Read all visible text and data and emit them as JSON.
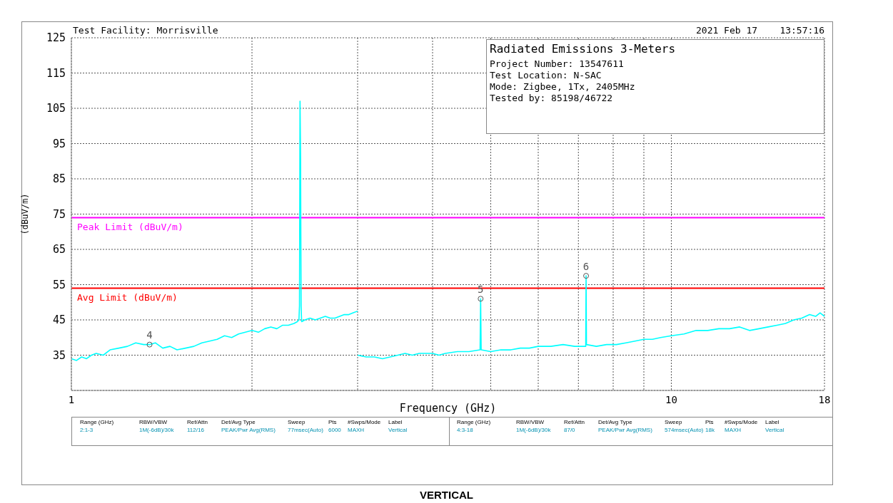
{
  "chart_data": {
    "type": "line",
    "title": "Radiated Emissions 3-Meters",
    "xlabel": "Frequency (GHz)",
    "ylabel": "(dBuV/m)",
    "log": "x",
    "grid": true,
    "legend": false,
    "marker": "none",
    "xlim": [
      1,
      18
    ],
    "xticks": [
      1,
      {
        "value": 2,
        "label": null
      },
      {
        "value": 3,
        "label": null
      },
      {
        "value": 4,
        "label": null
      },
      {
        "value": 5,
        "label": null
      },
      {
        "value": 6,
        "label": null
      },
      {
        "value": 7,
        "label": null
      },
      {
        "value": 8,
        "label": null
      },
      {
        "value": 9,
        "label": null
      },
      10,
      18
    ],
    "ylim": [
      25,
      125
    ],
    "yticks": [
      {
        "value": 25,
        "label": null
      },
      35,
      45,
      55,
      65,
      75,
      85,
      95,
      105,
      115,
      125
    ],
    "series": [
      {
        "color": "#00ffff",
        "x": [
          1.0,
          1.02,
          1.04,
          1.06,
          1.08,
          1.1,
          1.13,
          1.16,
          1.2,
          1.24,
          1.28,
          1.32,
          1.35,
          1.38,
          1.42,
          1.46,
          1.5,
          1.55,
          1.6,
          1.65,
          1.7,
          1.75,
          1.8,
          1.85,
          1.9,
          1.95,
          2.0,
          2.05,
          2.1,
          2.15,
          2.2,
          2.25,
          2.3,
          2.35,
          2.38,
          2.395,
          2.4,
          2.405,
          2.41,
          2.415,
          2.42,
          2.45,
          2.5,
          2.55,
          2.6,
          2.65,
          2.7,
          2.75,
          2.8,
          2.85,
          2.9,
          2.95,
          3.0
        ],
        "values": [
          34,
          33.5,
          34.5,
          34,
          35,
          35.5,
          35,
          36.5,
          37,
          37.5,
          38.5,
          38,
          38,
          38.5,
          37,
          37.5,
          36.5,
          37,
          37.5,
          38.5,
          39,
          39.5,
          40.5,
          40,
          41,
          41.5,
          42,
          41.5,
          42.5,
          43,
          42.5,
          43.5,
          43.5,
          44,
          44.5,
          45,
          49,
          107,
          91,
          49,
          44.5,
          45,
          45.5,
          45,
          45.5,
          46,
          45.5,
          45.5,
          46,
          46.5,
          46.5,
          47,
          47.5
        ]
      },
      {
        "color": "#00ffff",
        "x": [
          3.0,
          3.1,
          3.2,
          3.3,
          3.4,
          3.5,
          3.6,
          3.7,
          3.8,
          4.0,
          4.1,
          4.2,
          4.4,
          4.6,
          4.8,
          4.81,
          4.82,
          5.0,
          5.2,
          5.4,
          5.6,
          5.8,
          6.0,
          6.3,
          6.6,
          6.9,
          7.2,
          7.21,
          7.22,
          7.5,
          7.8,
          8.1,
          8.4,
          8.7,
          9.0,
          9.3,
          9.6,
          10.0,
          10.5,
          11.0,
          11.5,
          12.0,
          12.5,
          13.0,
          13.5,
          14.0,
          14.5,
          15.0,
          15.5,
          16.0,
          16.5,
          17.0,
          17.4,
          17.7,
          18.0
        ],
        "values": [
          35,
          34.5,
          34.5,
          34,
          34.5,
          35,
          35.5,
          35,
          35.5,
          35.5,
          35,
          35.5,
          36,
          36,
          36.5,
          51,
          36.5,
          36,
          36.5,
          36.5,
          37,
          37,
          37.5,
          37.5,
          38,
          37.5,
          37.5,
          57.5,
          38,
          37.5,
          38,
          38,
          38.5,
          39,
          39.5,
          39.5,
          40,
          40.5,
          41,
          42,
          42,
          42.5,
          42.5,
          43,
          42,
          42.5,
          43,
          43.5,
          44,
          45,
          45.5,
          46.5,
          46,
          47,
          46
        ]
      }
    ],
    "ref_lines": [
      {
        "axis": "y",
        "value": 74,
        "label": "Peak Limit (dBuV/m)",
        "color": "#ff00ff"
      },
      {
        "axis": "y",
        "value": 54,
        "label": "Avg Limit (dBuV/m)",
        "color": "#ff0000"
      }
    ],
    "annotations": [
      "Test Facility: Morrisville",
      "2021 Feb 17    13:57:16",
      "Project Number: 13547611",
      "Test Location: N-SAC",
      "Mode: Zigbee, 1Tx, 2405MHz",
      "Tested by: 85198/46722",
      "VERTICAL",
      "Range (GHz)",
      "RBW/VBW",
      "Ref/Attn",
      "Det/Avg Type",
      "Sweep",
      "Pts",
      "#Swps/Mode",
      "Label",
      "2:1-3",
      "1M(-6dB)/30k",
      "112/16",
      "PEAK/Pwr Avg(RMS)",
      "77msec(Auto)",
      "6000",
      "MAXH",
      "Vertical",
      "Range (GHz)",
      "RBW/VBW",
      "Ref/Attn",
      "Det/Avg Type",
      "Sweep",
      "Pts",
      "#Swps/Mode",
      "Label",
      "4:3-18",
      "1M(-6dB)/30k",
      "87/0",
      "PEAK/Pwr Avg(RMS)",
      "574msec(Auto)",
      "18k",
      "MAXH",
      "Vertical",
      {
        "text": "4",
        "x": 1.35,
        "y": 38
      },
      {
        "text": "5",
        "x": 4.81,
        "y": 51
      },
      {
        "text": "6",
        "x": 7.21,
        "y": 57.5
      }
    ]
  }
}
